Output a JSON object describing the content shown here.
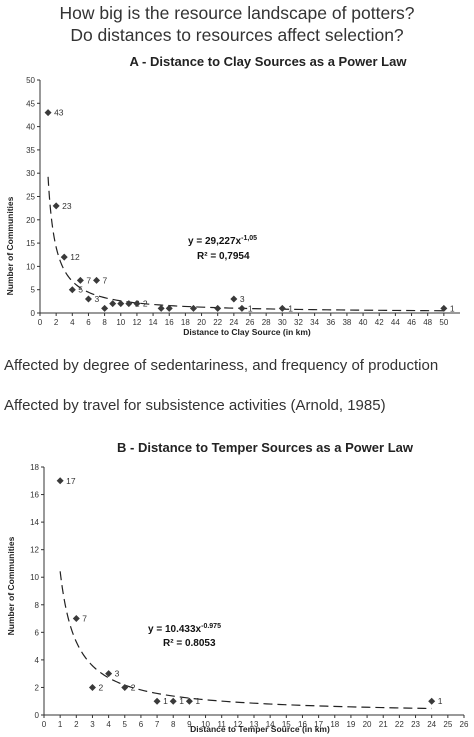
{
  "heading": {
    "line1": "How big is the resource landscape of potters?",
    "line2": "Do distances to resources affect selection?"
  },
  "notes": [
    "Affected by degree of sedentariness, and frequency of production",
    "Affected by travel for subsistence activities (Arnold, 1985)"
  ],
  "chart_data": [
    {
      "type": "scatter",
      "title": "A - Distance to Clay Sources as a Power Law",
      "xlabel": "Distance to Clay Source (in km)",
      "ylabel": "Number of Communities",
      "xlim": [
        0,
        52
      ],
      "ylim": [
        0,
        50
      ],
      "xticks": [
        0,
        2,
        4,
        6,
        8,
        10,
        12,
        14,
        16,
        18,
        20,
        22,
        24,
        26,
        28,
        30,
        32,
        34,
        36,
        38,
        40,
        42,
        44,
        46,
        48,
        50
      ],
      "yticks": [
        0,
        5,
        10,
        15,
        20,
        25,
        30,
        35,
        40,
        45,
        50
      ],
      "points": [
        {
          "x": 1,
          "y": 43,
          "label": "43"
        },
        {
          "x": 2,
          "y": 23,
          "label": "23"
        },
        {
          "x": 3,
          "y": 12,
          "label": "12"
        },
        {
          "x": 4,
          "y": 5,
          "label": "5"
        },
        {
          "x": 5,
          "y": 7,
          "label": "7"
        },
        {
          "x": 6,
          "y": 3,
          "label": "3"
        },
        {
          "x": 7,
          "y": 7,
          "label": "7"
        },
        {
          "x": 8,
          "y": 1,
          "label": ""
        },
        {
          "x": 9,
          "y": 2,
          "label": ""
        },
        {
          "x": 10,
          "y": 2,
          "label": ""
        },
        {
          "x": 11,
          "y": 2,
          "label": "2"
        },
        {
          "x": 12,
          "y": 2,
          "label": "2"
        },
        {
          "x": 15,
          "y": 1,
          "label": ""
        },
        {
          "x": 16,
          "y": 1,
          "label": ""
        },
        {
          "x": 19,
          "y": 1,
          "label": ""
        },
        {
          "x": 22,
          "y": 1,
          "label": ""
        },
        {
          "x": 24,
          "y": 3,
          "label": "3"
        },
        {
          "x": 25,
          "y": 1,
          "label": "1"
        },
        {
          "x": 30,
          "y": 1,
          "label": "1"
        },
        {
          "x": 50,
          "y": 1,
          "label": "1"
        }
      ],
      "trendline": {
        "coef": 29.227,
        "exp": -1.05,
        "x_from": 1,
        "x_to": 50,
        "style": "dashed"
      },
      "equation_main": "y = 29,227x",
      "equation_exp": "-1,05",
      "r2": "R² = 0,7954",
      "grid": false,
      "legend": "none"
    },
    {
      "type": "scatter",
      "title": "B - Distance to Temper Sources as a Power Law",
      "xlabel": "Distance to Temper Source (in km)",
      "ylabel": "Number of Communities",
      "xlim": [
        0,
        26
      ],
      "ylim": [
        0,
        18
      ],
      "xticks": [
        0,
        1,
        2,
        3,
        4,
        5,
        6,
        7,
        8,
        9,
        10,
        11,
        12,
        13,
        14,
        15,
        16,
        17,
        18,
        19,
        20,
        21,
        22,
        23,
        24,
        25,
        26
      ],
      "yticks": [
        0,
        2,
        4,
        6,
        8,
        10,
        12,
        14,
        16,
        18
      ],
      "points": [
        {
          "x": 1,
          "y": 17,
          "label": "17"
        },
        {
          "x": 2,
          "y": 7,
          "label": "7"
        },
        {
          "x": 3,
          "y": 2,
          "label": "2"
        },
        {
          "x": 4,
          "y": 3,
          "label": "3"
        },
        {
          "x": 5,
          "y": 2,
          "label": "2"
        },
        {
          "x": 7,
          "y": 1,
          "label": "1"
        },
        {
          "x": 8,
          "y": 1,
          "label": "1"
        },
        {
          "x": 9,
          "y": 1,
          "label": "1"
        },
        {
          "x": 24,
          "y": 1,
          "label": "1"
        }
      ],
      "trendline": {
        "coef": 10.433,
        "exp": -0.975,
        "x_from": 1,
        "x_to": 24,
        "style": "dashed"
      },
      "equation_main": "y = 10.433x",
      "equation_exp": "-0.975",
      "r2": "R² = 0.8053",
      "grid": false,
      "legend": "none"
    }
  ]
}
